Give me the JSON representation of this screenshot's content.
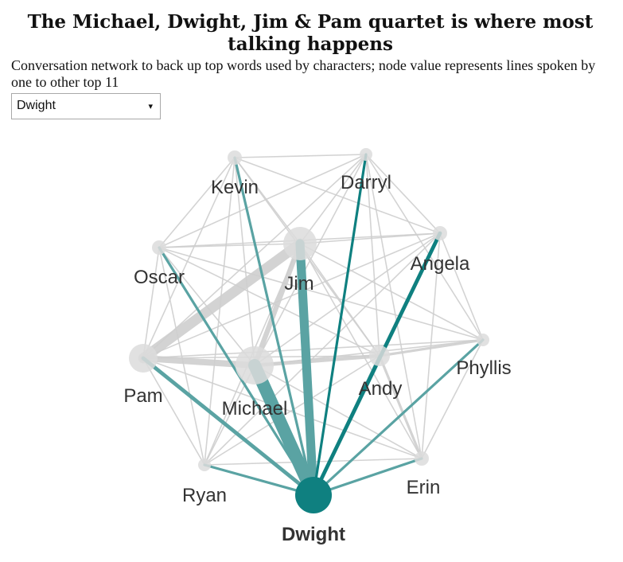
{
  "header": {
    "title": "The Michael, Dwight, Jim & Pam quartet is where most talking happens",
    "subtitle": "Conversation network to back up top words used by characters; node value represents lines spoken by one to other top 11"
  },
  "selector": {
    "value": "Dwight",
    "arrow": "▾"
  },
  "colors": {
    "highlight": "#0f8080",
    "highlight_link": "#5aa3a3",
    "muted_node": "#dcdcdc",
    "muted_link": "#cfcfcf"
  },
  "chart_data": {
    "type": "network",
    "selected": "Dwight",
    "nodes": [
      {
        "id": "Dwight",
        "label": "Dwight"
      },
      {
        "id": "Erin",
        "label": "Erin"
      },
      {
        "id": "Andy",
        "label": "Andy"
      },
      {
        "id": "Phyllis",
        "label": "Phyllis"
      },
      {
        "id": "Angela",
        "label": "Angela"
      },
      {
        "id": "Darryl",
        "label": "Darryl"
      },
      {
        "id": "Jim",
        "label": "Jim"
      },
      {
        "id": "Kevin",
        "label": "Kevin"
      },
      {
        "id": "Oscar",
        "label": "Oscar"
      },
      {
        "id": "Pam",
        "label": "Pam"
      },
      {
        "id": "Michael",
        "label": "Michael"
      },
      {
        "id": "Ryan",
        "label": "Ryan"
      }
    ],
    "links": [
      {
        "source": "Dwight",
        "target": "Michael",
        "weight": 10
      },
      {
        "source": "Dwight",
        "target": "Jim",
        "weight": 7
      },
      {
        "source": "Dwight",
        "target": "Pam",
        "weight": 3
      },
      {
        "source": "Dwight",
        "target": "Andy",
        "weight": 2
      },
      {
        "source": "Dwight",
        "target": "Angela",
        "weight": 3
      },
      {
        "source": "Dwight",
        "target": "Darryl",
        "weight": 2
      },
      {
        "source": "Dwight",
        "target": "Kevin",
        "weight": 2
      },
      {
        "source": "Dwight",
        "target": "Oscar",
        "weight": 2
      },
      {
        "source": "Dwight",
        "target": "Ryan",
        "weight": 2
      },
      {
        "source": "Dwight",
        "target": "Erin",
        "weight": 2
      },
      {
        "source": "Dwight",
        "target": "Phyllis",
        "weight": 2
      },
      {
        "source": "Pam",
        "target": "Jim",
        "weight": 8
      },
      {
        "source": "Michael",
        "target": "Jim",
        "weight": 4
      },
      {
        "source": "Pam",
        "target": "Michael",
        "weight": 5
      },
      {
        "source": "Michael",
        "target": "Andy",
        "weight": 3
      },
      {
        "source": "Andy",
        "target": "Phyllis",
        "weight": 2
      },
      {
        "source": "Andy",
        "target": "Erin",
        "weight": 2
      },
      {
        "source": "Michael",
        "target": "Oscar",
        "weight": 1
      },
      {
        "source": "Michael",
        "target": "Kevin",
        "weight": 1
      },
      {
        "source": "Michael",
        "target": "Ryan",
        "weight": 1
      },
      {
        "source": "Michael",
        "target": "Angela",
        "weight": 1
      },
      {
        "source": "Michael",
        "target": "Darryl",
        "weight": 1
      },
      {
        "source": "Michael",
        "target": "Phyllis",
        "weight": 1
      },
      {
        "source": "Michael",
        "target": "Erin",
        "weight": 1
      },
      {
        "source": "Jim",
        "target": "Kevin",
        "weight": 1
      },
      {
        "source": "Jim",
        "target": "Oscar",
        "weight": 1
      },
      {
        "source": "Jim",
        "target": "Darryl",
        "weight": 1
      },
      {
        "source": "Jim",
        "target": "Angela",
        "weight": 1
      },
      {
        "source": "Jim",
        "target": "Andy",
        "weight": 1
      },
      {
        "source": "Jim",
        "target": "Phyllis",
        "weight": 1
      },
      {
        "source": "Jim",
        "target": "Erin",
        "weight": 1
      },
      {
        "source": "Jim",
        "target": "Ryan",
        "weight": 1
      },
      {
        "source": "Pam",
        "target": "Oscar",
        "weight": 1
      },
      {
        "source": "Pam",
        "target": "Kevin",
        "weight": 1
      },
      {
        "source": "Pam",
        "target": "Angela",
        "weight": 1
      },
      {
        "source": "Pam",
        "target": "Phyllis",
        "weight": 1
      },
      {
        "source": "Pam",
        "target": "Andy",
        "weight": 1
      },
      {
        "source": "Pam",
        "target": "Ryan",
        "weight": 1
      },
      {
        "source": "Pam",
        "target": "Erin",
        "weight": 1
      },
      {
        "source": "Pam",
        "target": "Darryl",
        "weight": 1
      },
      {
        "source": "Kevin",
        "target": "Darryl",
        "weight": 1
      },
      {
        "source": "Kevin",
        "target": "Angela",
        "weight": 1
      },
      {
        "source": "Kevin",
        "target": "Oscar",
        "weight": 1
      },
      {
        "source": "Kevin",
        "target": "Andy",
        "weight": 1
      },
      {
        "source": "Kevin",
        "target": "Ryan",
        "weight": 1
      },
      {
        "source": "Oscar",
        "target": "Angela",
        "weight": 1
      },
      {
        "source": "Oscar",
        "target": "Darryl",
        "weight": 1
      },
      {
        "source": "Oscar",
        "target": "Andy",
        "weight": 1
      },
      {
        "source": "Oscar",
        "target": "Ryan",
        "weight": 1
      },
      {
        "source": "Oscar",
        "target": "Phyllis",
        "weight": 1
      },
      {
        "source": "Angela",
        "target": "Darryl",
        "weight": 1
      },
      {
        "source": "Angela",
        "target": "Phyllis",
        "weight": 1
      },
      {
        "source": "Angela",
        "target": "Andy",
        "weight": 1
      },
      {
        "source": "Angela",
        "target": "Erin",
        "weight": 1
      },
      {
        "source": "Angela",
        "target": "Ryan",
        "weight": 1
      },
      {
        "source": "Darryl",
        "target": "Andy",
        "weight": 1
      },
      {
        "source": "Darryl",
        "target": "Phyllis",
        "weight": 1
      },
      {
        "source": "Darryl",
        "target": "Erin",
        "weight": 1
      },
      {
        "source": "Andy",
        "target": "Ryan",
        "weight": 1
      },
      {
        "source": "Phyllis",
        "target": "Erin",
        "weight": 1
      },
      {
        "source": "Ryan",
        "target": "Erin",
        "weight": 1
      }
    ]
  }
}
